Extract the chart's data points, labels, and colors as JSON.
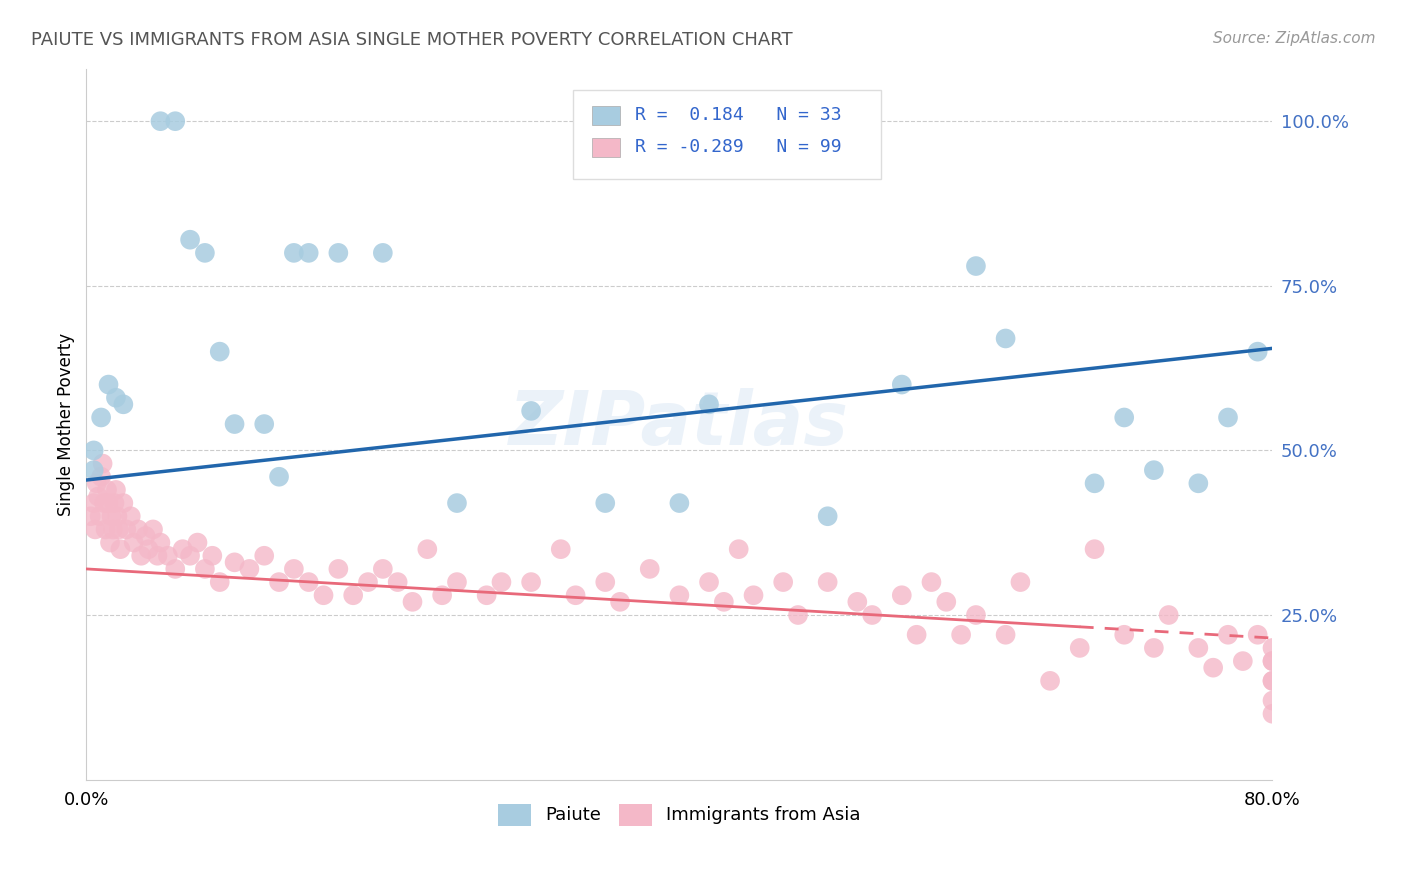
{
  "title": "PAIUTE VS IMMIGRANTS FROM ASIA SINGLE MOTHER POVERTY CORRELATION CHART",
  "source": "Source: ZipAtlas.com",
  "ylabel": "Single Mother Poverty",
  "xlim": [
    0.0,
    0.8
  ],
  "ylim": [
    0.0,
    1.08
  ],
  "legend_label1": "Paiute",
  "legend_label2": "Immigrants from Asia",
  "r1": 0.184,
  "n1": 33,
  "r2": -0.289,
  "n2": 99,
  "color_paiute": "#a8cce0",
  "color_asia": "#f4b8c8",
  "color_line_paiute": "#2166ac",
  "color_line_asia": "#e8697a",
  "watermark_zip": "ZIP",
  "watermark_atlas": "atlas",
  "paiute_x": [
    0.005,
    0.005,
    0.01,
    0.015,
    0.02,
    0.025,
    0.05,
    0.06,
    0.07,
    0.08,
    0.09,
    0.1,
    0.12,
    0.13,
    0.14,
    0.15,
    0.17,
    0.2,
    0.25,
    0.3,
    0.35,
    0.4,
    0.42,
    0.5,
    0.55,
    0.6,
    0.62,
    0.68,
    0.7,
    0.72,
    0.75,
    0.77,
    0.79
  ],
  "paiute_y": [
    0.5,
    0.47,
    0.55,
    0.6,
    0.58,
    0.57,
    1.0,
    1.0,
    0.82,
    0.8,
    0.65,
    0.54,
    0.54,
    0.46,
    0.8,
    0.8,
    0.8,
    0.8,
    0.42,
    0.56,
    0.42,
    0.42,
    0.57,
    0.4,
    0.6,
    0.78,
    0.67,
    0.45,
    0.55,
    0.47,
    0.45,
    0.55,
    0.65
  ],
  "asia_x": [
    0.003,
    0.005,
    0.006,
    0.007,
    0.008,
    0.009,
    0.01,
    0.011,
    0.012,
    0.013,
    0.014,
    0.015,
    0.016,
    0.017,
    0.018,
    0.019,
    0.02,
    0.021,
    0.022,
    0.023,
    0.025,
    0.027,
    0.03,
    0.032,
    0.035,
    0.037,
    0.04,
    0.042,
    0.045,
    0.048,
    0.05,
    0.055,
    0.06,
    0.065,
    0.07,
    0.075,
    0.08,
    0.085,
    0.09,
    0.1,
    0.11,
    0.12,
    0.13,
    0.14,
    0.15,
    0.16,
    0.17,
    0.18,
    0.19,
    0.2,
    0.21,
    0.22,
    0.23,
    0.24,
    0.25,
    0.27,
    0.28,
    0.3,
    0.32,
    0.33,
    0.35,
    0.36,
    0.38,
    0.4,
    0.42,
    0.43,
    0.44,
    0.45,
    0.47,
    0.48,
    0.5,
    0.52,
    0.53,
    0.55,
    0.56,
    0.57,
    0.58,
    0.59,
    0.6,
    0.62,
    0.63,
    0.65,
    0.67,
    0.68,
    0.7,
    0.72,
    0.73,
    0.75,
    0.76,
    0.77,
    0.78,
    0.79,
    0.8,
    0.8,
    0.8,
    0.8,
    0.8,
    0.8,
    0.8
  ],
  "asia_y": [
    0.4,
    0.42,
    0.38,
    0.45,
    0.43,
    0.4,
    0.46,
    0.48,
    0.42,
    0.38,
    0.44,
    0.42,
    0.36,
    0.4,
    0.38,
    0.42,
    0.44,
    0.4,
    0.38,
    0.35,
    0.42,
    0.38,
    0.4,
    0.36,
    0.38,
    0.34,
    0.37,
    0.35,
    0.38,
    0.34,
    0.36,
    0.34,
    0.32,
    0.35,
    0.34,
    0.36,
    0.32,
    0.34,
    0.3,
    0.33,
    0.32,
    0.34,
    0.3,
    0.32,
    0.3,
    0.28,
    0.32,
    0.28,
    0.3,
    0.32,
    0.3,
    0.27,
    0.35,
    0.28,
    0.3,
    0.28,
    0.3,
    0.3,
    0.35,
    0.28,
    0.3,
    0.27,
    0.32,
    0.28,
    0.3,
    0.27,
    0.35,
    0.28,
    0.3,
    0.25,
    0.3,
    0.27,
    0.25,
    0.28,
    0.22,
    0.3,
    0.27,
    0.22,
    0.25,
    0.22,
    0.3,
    0.15,
    0.2,
    0.35,
    0.22,
    0.2,
    0.25,
    0.2,
    0.17,
    0.22,
    0.18,
    0.22,
    0.18,
    0.2,
    0.15,
    0.18,
    0.15,
    0.12,
    0.1
  ],
  "line_paiute_x0": 0.0,
  "line_paiute_y0": 0.455,
  "line_paiute_x1": 0.8,
  "line_paiute_y1": 0.655,
  "line_asia_x0": 0.0,
  "line_asia_y0": 0.32,
  "line_asia_x1": 0.8,
  "line_asia_y1": 0.215,
  "line_asia_solid_end": 0.67
}
